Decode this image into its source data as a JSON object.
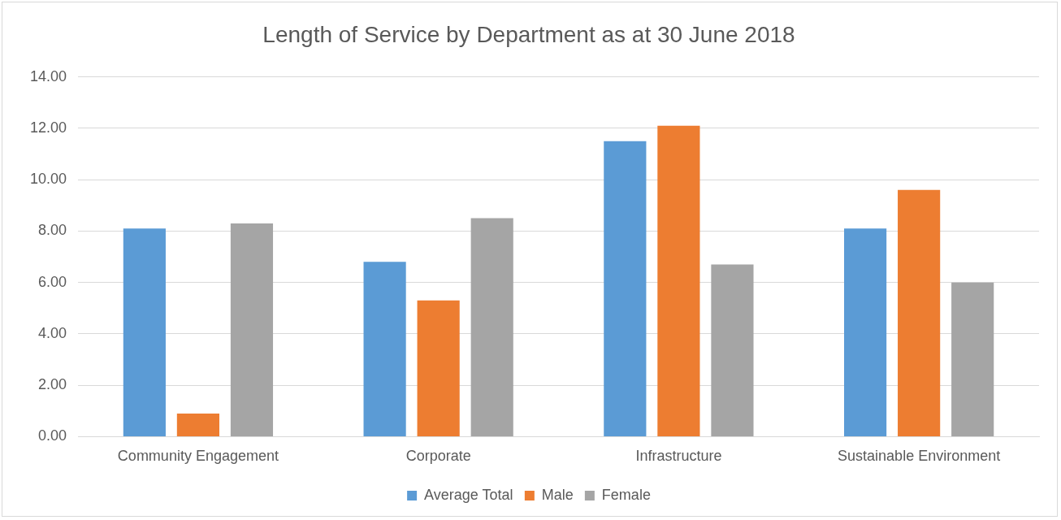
{
  "chart_data": {
    "type": "bar",
    "title": "Length of Service by Department as at 30 June 2018",
    "categories": [
      "Community Engagement",
      "Corporate",
      "Infrastructure",
      "Sustainable Environment"
    ],
    "series": [
      {
        "name": "Average Total",
        "color": "#5b9bd5",
        "values": [
          8.1,
          6.8,
          11.5,
          8.1
        ]
      },
      {
        "name": "Male",
        "color": "#ed7d31",
        "values": [
          0.9,
          5.3,
          12.1,
          9.6
        ]
      },
      {
        "name": "Female",
        "color": "#a5a5a5",
        "values": [
          8.3,
          8.5,
          6.7,
          6.0
        ]
      }
    ],
    "ylim": [
      0,
      14
    ],
    "yticks": [
      {
        "value": 0,
        "label": "0.00"
      },
      {
        "value": 2,
        "label": "2.00"
      },
      {
        "value": 4,
        "label": "4.00"
      },
      {
        "value": 6,
        "label": "6.00"
      },
      {
        "value": 8,
        "label": "8.00"
      },
      {
        "value": 10,
        "label": "10.00"
      },
      {
        "value": 12,
        "label": "12.00"
      },
      {
        "value": 14,
        "label": "14.00"
      }
    ],
    "grid": "y",
    "legend": "bottom"
  }
}
